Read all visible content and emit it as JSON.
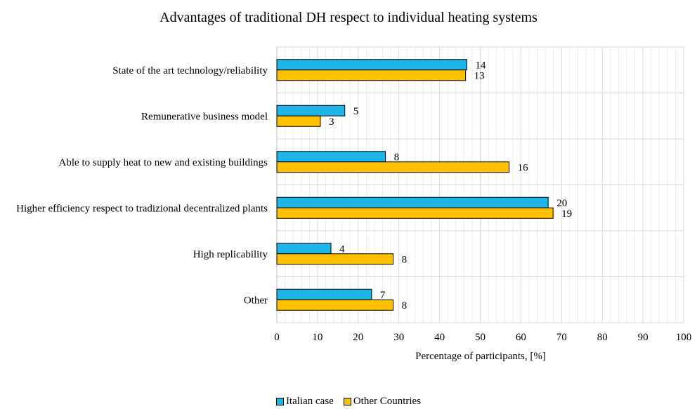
{
  "chart_data": {
    "type": "bar",
    "orientation": "horizontal",
    "title": "Advantages of traditional DH respect to individual heating systems",
    "xlabel": "Percentage of participants, [%]",
    "ylabel": "",
    "xlim": [
      0,
      100
    ],
    "xticks": [
      0,
      10,
      20,
      30,
      40,
      50,
      60,
      70,
      80,
      90,
      100
    ],
    "categories": [
      "State of the art technology/reliability",
      "Remunerative business model",
      "Able to supply heat to new and existing buildings",
      "Higher efficiency respect to tradizional decentralized plants",
      "High replicability",
      "Other"
    ],
    "series": [
      {
        "name": "Italian case",
        "color": "#1EB4E8",
        "values": [
          46.7,
          16.7,
          26.7,
          66.7,
          13.3,
          23.3
        ],
        "data_labels": [
          "14",
          "5",
          "8",
          "20",
          "4",
          "7"
        ]
      },
      {
        "name": "Other Countries",
        "color": "#FFC000",
        "values": [
          46.4,
          10.7,
          57.1,
          67.9,
          28.6,
          28.6
        ],
        "data_labels": [
          "13",
          "3",
          "16",
          "19",
          "8",
          "8"
        ]
      }
    ],
    "grid": true,
    "legend": "bottom-center"
  }
}
